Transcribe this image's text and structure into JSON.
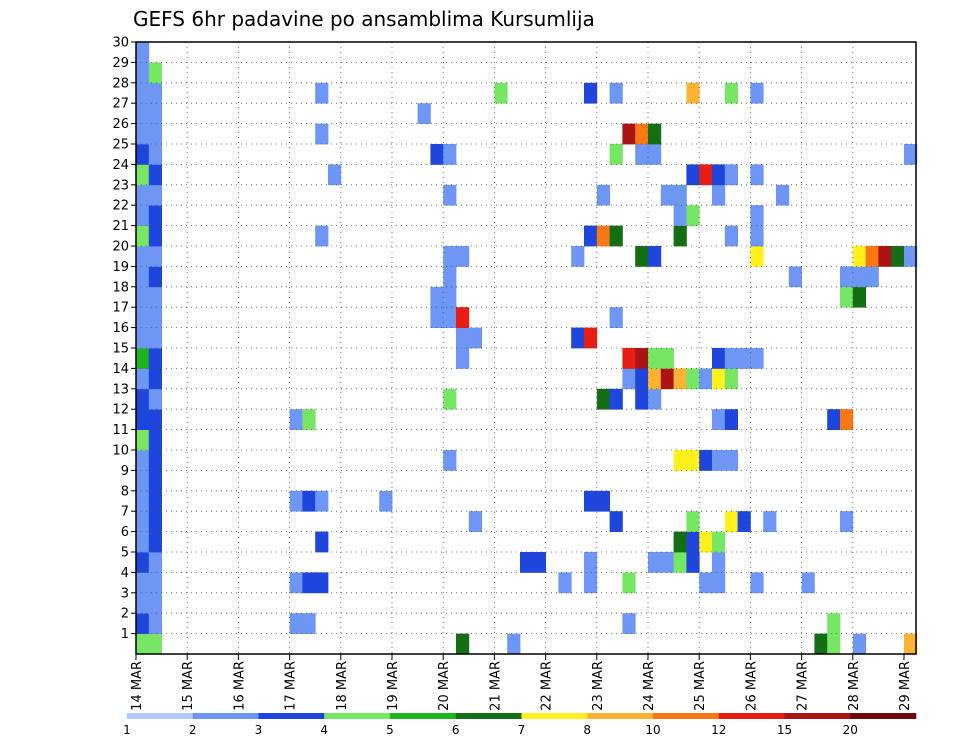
{
  "chart_data": {
    "type": "heatmap",
    "title": "GEFS 6hr padavine po ansamblima Kursumlija",
    "xlabel": "",
    "ylabel": "",
    "x_ticks": [
      "14 MAR",
      "15 MAR",
      "16 MAR",
      "17 MAR",
      "18 MAR",
      "19 MAR",
      "20 MAR",
      "21 MAR",
      "22 MAR",
      "23 MAR",
      "24 MAR",
      "25 MAR",
      "26 MAR",
      "27 MAR",
      "28 MAR",
      "29 MAR"
    ],
    "y_ticks": [
      1,
      2,
      3,
      4,
      5,
      6,
      7,
      8,
      9,
      10,
      11,
      12,
      13,
      14,
      15,
      16,
      17,
      18,
      19,
      20,
      21,
      22,
      23,
      24,
      25,
      26,
      27,
      28,
      29,
      30
    ],
    "time_steps": 61,
    "grid": "dotted",
    "legend": {
      "placement": "bottom",
      "labels": [
        "1",
        "2",
        "3",
        "4",
        "5",
        "6",
        "7",
        "8",
        "10",
        "12",
        "15",
        "20"
      ],
      "colors": [
        "#b4c8f5",
        "#6e96f5",
        "#1e46dc",
        "#76e664",
        "#1eb41e",
        "#146e14",
        "#fff01e",
        "#fbb432",
        "#fa7814",
        "#e61e14",
        "#aa1414",
        "#6e0a0a"
      ]
    },
    "cells": [
      [
        0,
        0,
        3
      ],
      [
        0,
        1,
        2
      ],
      [
        0,
        2,
        1
      ],
      [
        0,
        3,
        1
      ],
      [
        0,
        4,
        2
      ],
      [
        0,
        5,
        1
      ],
      [
        0,
        6,
        1
      ],
      [
        0,
        7,
        1
      ],
      [
        0,
        8,
        1
      ],
      [
        0,
        9,
        1
      ],
      [
        0,
        10,
        3
      ],
      [
        0,
        11,
        2
      ],
      [
        0,
        12,
        2
      ],
      [
        0,
        13,
        1
      ],
      [
        0,
        14,
        4
      ],
      [
        0,
        15,
        1
      ],
      [
        0,
        16,
        1
      ],
      [
        0,
        17,
        1
      ],
      [
        0,
        18,
        1
      ],
      [
        0,
        19,
        1
      ],
      [
        0,
        20,
        3
      ],
      [
        0,
        21,
        1
      ],
      [
        0,
        22,
        1
      ],
      [
        0,
        23,
        3
      ],
      [
        0,
        24,
        2
      ],
      [
        0,
        25,
        1
      ],
      [
        0,
        26,
        1
      ],
      [
        0,
        27,
        1
      ],
      [
        0,
        28,
        1
      ],
      [
        0,
        29,
        1
      ],
      [
        1,
        0,
        3
      ],
      [
        1,
        1,
        1
      ],
      [
        1,
        2,
        1
      ],
      [
        1,
        3,
        1
      ],
      [
        1,
        4,
        1
      ],
      [
        1,
        5,
        2
      ],
      [
        1,
        6,
        2
      ],
      [
        1,
        7,
        2
      ],
      [
        1,
        8,
        2
      ],
      [
        1,
        9,
        2
      ],
      [
        1,
        10,
        2
      ],
      [
        1,
        11,
        2
      ],
      [
        1,
        12,
        1
      ],
      [
        1,
        13,
        2
      ],
      [
        1,
        14,
        2
      ],
      [
        1,
        15,
        1
      ],
      [
        1,
        16,
        1
      ],
      [
        1,
        17,
        1
      ],
      [
        1,
        18,
        2
      ],
      [
        1,
        19,
        1
      ],
      [
        1,
        20,
        2
      ],
      [
        1,
        21,
        2
      ],
      [
        1,
        22,
        1
      ],
      [
        1,
        23,
        2
      ],
      [
        1,
        24,
        1
      ],
      [
        1,
        25,
        1
      ],
      [
        1,
        26,
        1
      ],
      [
        1,
        27,
        1
      ],
      [
        1,
        28,
        3
      ],
      [
        12,
        1,
        1
      ],
      [
        12,
        3,
        1
      ],
      [
        12,
        7,
        1
      ],
      [
        12,
        11,
        1
      ],
      [
        13,
        1,
        1
      ],
      [
        13,
        3,
        2
      ],
      [
        13,
        7,
        2
      ],
      [
        13,
        11,
        3
      ],
      [
        14,
        3,
        2
      ],
      [
        14,
        5,
        2
      ],
      [
        14,
        7,
        1
      ],
      [
        14,
        20,
        1
      ],
      [
        14,
        25,
        1
      ],
      [
        14,
        27,
        1
      ],
      [
        15,
        23,
        1
      ],
      [
        19,
        7,
        1
      ],
      [
        23,
        16,
        1
      ],
      [
        23,
        17,
        1
      ],
      [
        23,
        24,
        2
      ],
      [
        22,
        26,
        1
      ],
      [
        24,
        9,
        1
      ],
      [
        24,
        12,
        3
      ],
      [
        24,
        16,
        1
      ],
      [
        24,
        17,
        1
      ],
      [
        24,
        18,
        1
      ],
      [
        24,
        19,
        1
      ],
      [
        24,
        22,
        1
      ],
      [
        24,
        24,
        1
      ],
      [
        25,
        0,
        5
      ],
      [
        25,
        14,
        1
      ],
      [
        25,
        15,
        1
      ],
      [
        25,
        16,
        9
      ],
      [
        25,
        19,
        1
      ],
      [
        26,
        6,
        1
      ],
      [
        26,
        15,
        1
      ],
      [
        28,
        27,
        3
      ],
      [
        29,
        0,
        1
      ],
      [
        30,
        4,
        2
      ],
      [
        31,
        4,
        2
      ],
      [
        33,
        3,
        1
      ],
      [
        34,
        15,
        2
      ],
      [
        34,
        19,
        1
      ],
      [
        35,
        3,
        1
      ],
      [
        35,
        4,
        1
      ],
      [
        35,
        7,
        2
      ],
      [
        35,
        15,
        9
      ],
      [
        35,
        20,
        2
      ],
      [
        35,
        27,
        2
      ],
      [
        36,
        7,
        2
      ],
      [
        36,
        12,
        5
      ],
      [
        36,
        20,
        8
      ],
      [
        36,
        22,
        1
      ],
      [
        37,
        6,
        2
      ],
      [
        37,
        12,
        2
      ],
      [
        37,
        16,
        1
      ],
      [
        37,
        20,
        5
      ],
      [
        37,
        24,
        3
      ],
      [
        37,
        27,
        1
      ],
      [
        38,
        1,
        1
      ],
      [
        38,
        3,
        3
      ],
      [
        38,
        13,
        1
      ],
      [
        38,
        14,
        9
      ],
      [
        38,
        25,
        10
      ],
      [
        39,
        12,
        2
      ],
      [
        39,
        13,
        2
      ],
      [
        39,
        14,
        10
      ],
      [
        39,
        19,
        5
      ],
      [
        39,
        24,
        1
      ],
      [
        39,
        25,
        8
      ],
      [
        40,
        4,
        1
      ],
      [
        40,
        12,
        1
      ],
      [
        40,
        13,
        7
      ],
      [
        40,
        14,
        3
      ],
      [
        40,
        19,
        2
      ],
      [
        40,
        24,
        1
      ],
      [
        40,
        25,
        5
      ],
      [
        41,
        4,
        1
      ],
      [
        41,
        13,
        10
      ],
      [
        41,
        14,
        3
      ],
      [
        41,
        22,
        1
      ],
      [
        42,
        4,
        3
      ],
      [
        42,
        5,
        5
      ],
      [
        42,
        9,
        6
      ],
      [
        42,
        13,
        7
      ],
      [
        42,
        20,
        5
      ],
      [
        42,
        21,
        1
      ],
      [
        42,
        22,
        1
      ],
      [
        43,
        4,
        2
      ],
      [
        43,
        5,
        2
      ],
      [
        43,
        6,
        3
      ],
      [
        43,
        9,
        6
      ],
      [
        43,
        13,
        3
      ],
      [
        43,
        21,
        3
      ],
      [
        43,
        23,
        2
      ],
      [
        43,
        27,
        7
      ],
      [
        44,
        3,
        1
      ],
      [
        44,
        5,
        6
      ],
      [
        44,
        9,
        2
      ],
      [
        44,
        13,
        1
      ],
      [
        44,
        23,
        9
      ],
      [
        45,
        3,
        1
      ],
      [
        45,
        4,
        1
      ],
      [
        45,
        5,
        3
      ],
      [
        45,
        9,
        1
      ],
      [
        45,
        11,
        1
      ],
      [
        45,
        13,
        6
      ],
      [
        45,
        14,
        2
      ],
      [
        45,
        22,
        1
      ],
      [
        45,
        23,
        2
      ],
      [
        46,
        6,
        6
      ],
      [
        46,
        9,
        1
      ],
      [
        46,
        11,
        2
      ],
      [
        46,
        13,
        3
      ],
      [
        46,
        14,
        1
      ],
      [
        46,
        20,
        1
      ],
      [
        46,
        23,
        1
      ],
      [
        46,
        27,
        3
      ],
      [
        47,
        6,
        2
      ],
      [
        47,
        14,
        1
      ],
      [
        48,
        3,
        1
      ],
      [
        48,
        14,
        1
      ],
      [
        48,
        19,
        6
      ],
      [
        48,
        20,
        1
      ],
      [
        48,
        21,
        1
      ],
      [
        48,
        23,
        1
      ],
      [
        48,
        27,
        1
      ],
      [
        49,
        6,
        1
      ],
      [
        50,
        22,
        1
      ],
      [
        51,
        18,
        1
      ],
      [
        52,
        3,
        1
      ],
      [
        53,
        0,
        5
      ],
      [
        54,
        0,
        3
      ],
      [
        54,
        1,
        3
      ],
      [
        54,
        11,
        2
      ],
      [
        55,
        6,
        1
      ],
      [
        55,
        11,
        8
      ],
      [
        55,
        17,
        3
      ],
      [
        55,
        18,
        1
      ],
      [
        56,
        0,
        1
      ],
      [
        56,
        17,
        5
      ],
      [
        56,
        18,
        1
      ],
      [
        56,
        19,
        6
      ],
      [
        57,
        18,
        1
      ],
      [
        57,
        19,
        8
      ],
      [
        58,
        19,
        10
      ],
      [
        59,
        19,
        5
      ],
      [
        60,
        0,
        7
      ],
      [
        60,
        19,
        1
      ],
      [
        60,
        24,
        1
      ]
    ]
  }
}
